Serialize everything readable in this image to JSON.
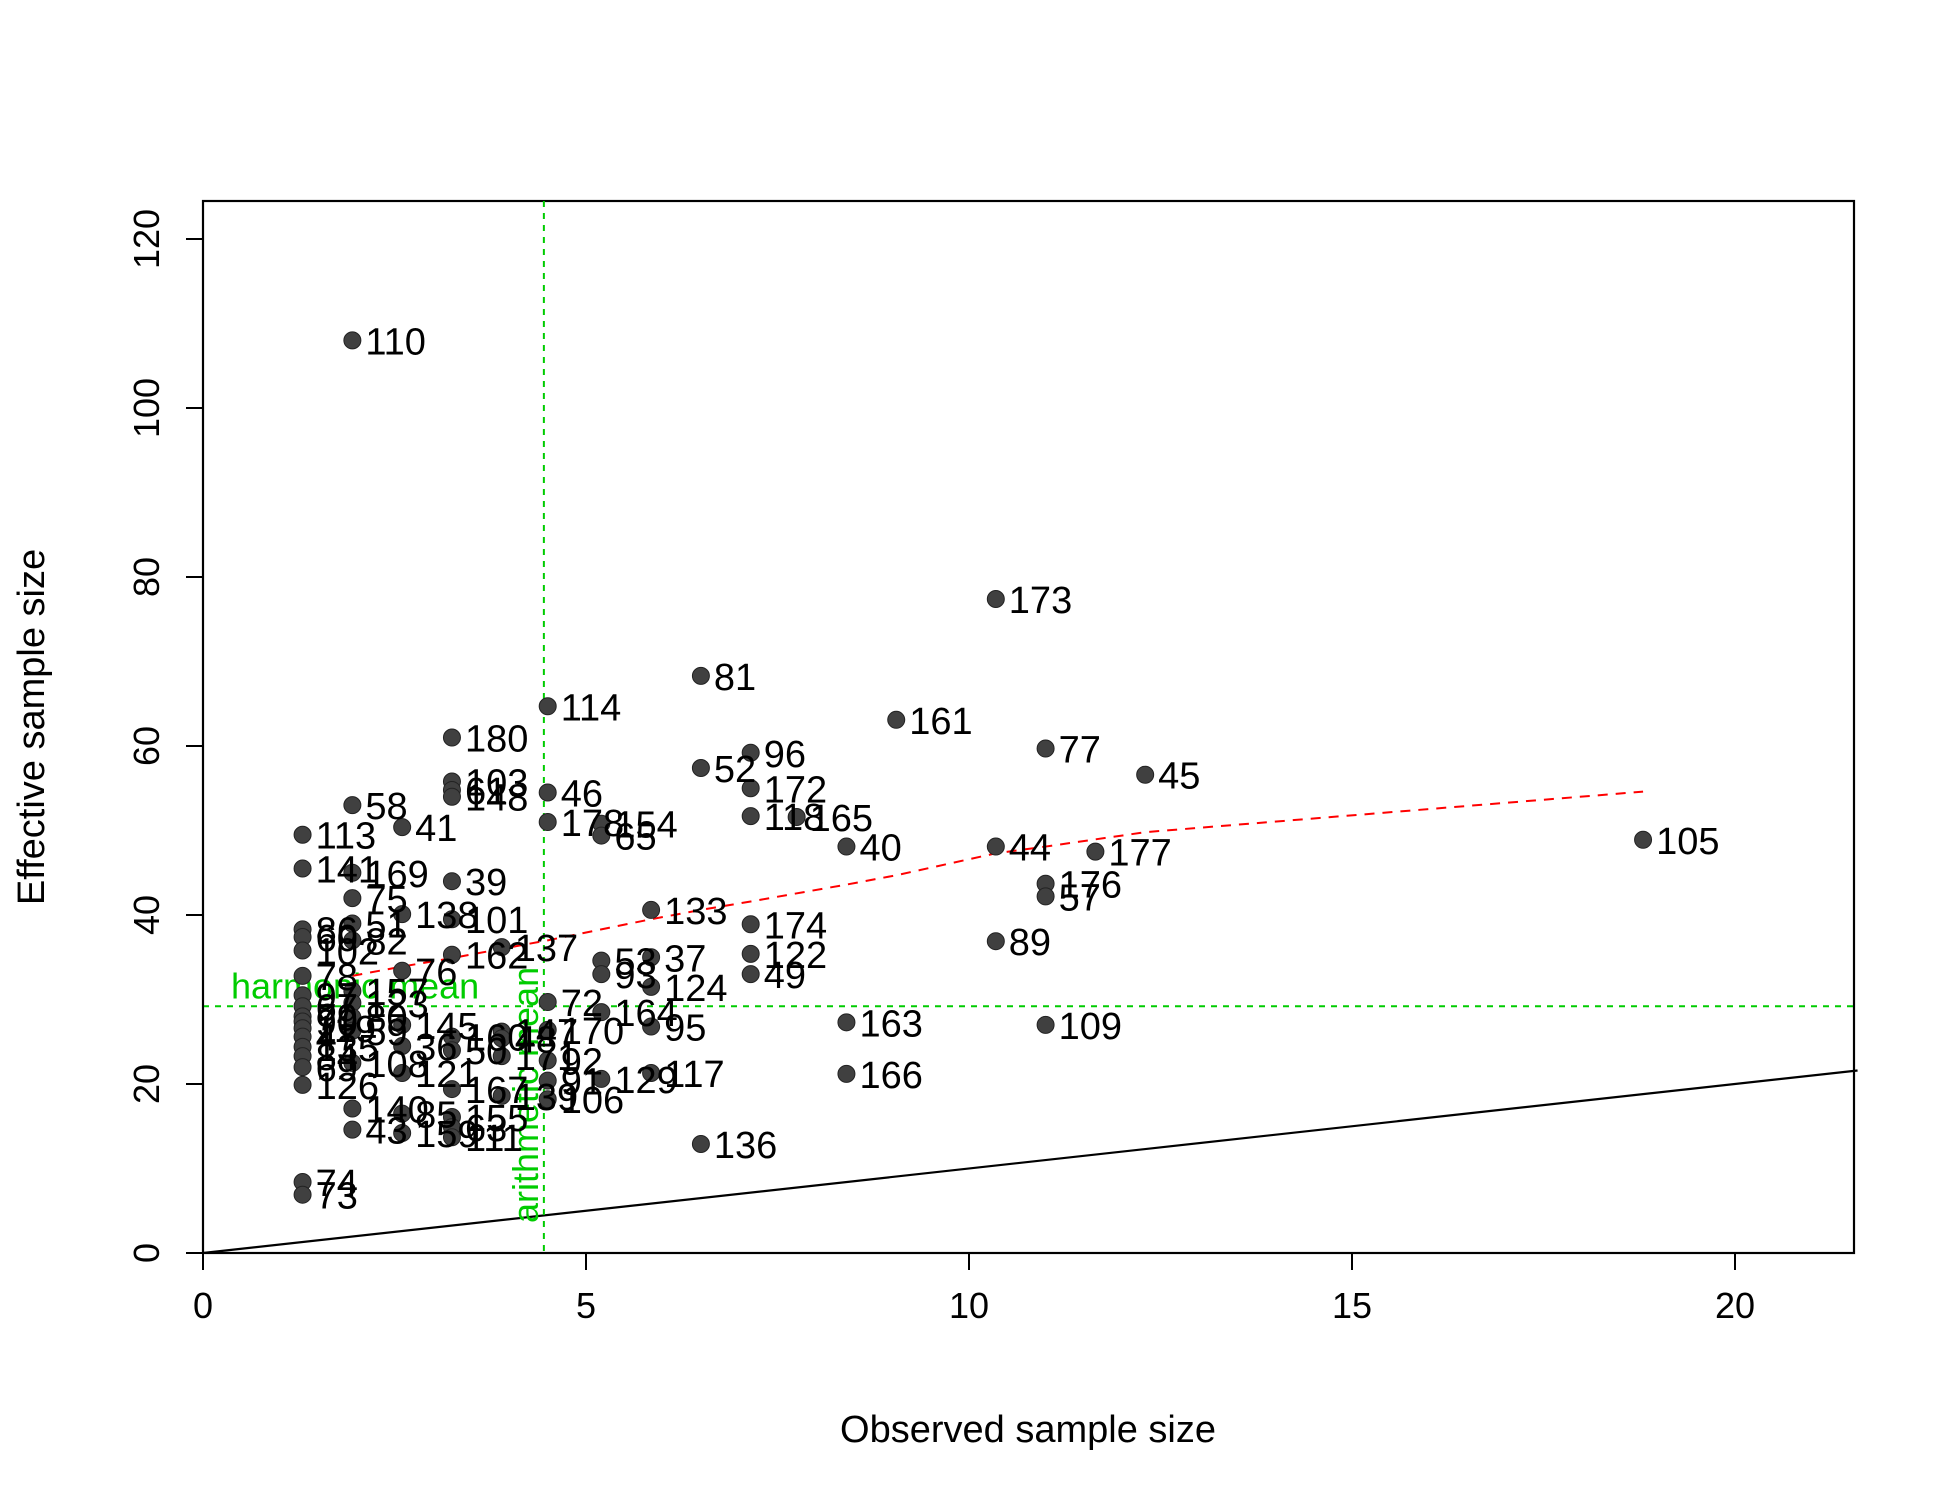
{
  "chart_data": {
    "type": "scatter",
    "title": "",
    "xlabel": "Observed sample size",
    "ylabel": "Effective sample size",
    "xlim": [
      0,
      21.6
    ],
    "ylim": [
      0,
      120
    ],
    "xticks": [
      0,
      5,
      10,
      15,
      20
    ],
    "yticks": [
      0,
      20,
      40,
      60,
      80,
      100,
      120
    ],
    "grid": false,
    "point_color": "#404040",
    "points": [
      {
        "x": 1.95,
        "y": 108,
        "label": "110"
      },
      {
        "x": 10.35,
        "y": 77.4,
        "label": "173"
      },
      {
        "x": 6.5,
        "y": 68.3,
        "label": "81"
      },
      {
        "x": 4.5,
        "y": 64.7,
        "label": "114"
      },
      {
        "x": 9.05,
        "y": 63.1,
        "label": "161"
      },
      {
        "x": 3.25,
        "y": 61.0,
        "label": "180"
      },
      {
        "x": 11.0,
        "y": 59.7,
        "label": "77"
      },
      {
        "x": 7.15,
        "y": 59.2,
        "label": "96"
      },
      {
        "x": 6.5,
        "y": 57.4,
        "label": "52"
      },
      {
        "x": 12.3,
        "y": 56.6,
        "label": "45"
      },
      {
        "x": 3.25,
        "y": 55.8,
        "label": "103"
      },
      {
        "x": 3.25,
        "y": 54.8,
        "label": "61"
      },
      {
        "x": 3.25,
        "y": 54.0,
        "label": "148"
      },
      {
        "x": 7.15,
        "y": 55.0,
        "label": "172"
      },
      {
        "x": 4.5,
        "y": 54.5,
        "label": "46"
      },
      {
        "x": 1.95,
        "y": 53.0,
        "label": "58"
      },
      {
        "x": 7.15,
        "y": 51.7,
        "label": "118"
      },
      {
        "x": 7.75,
        "y": 51.6,
        "label": "165"
      },
      {
        "x": 4.5,
        "y": 51.0,
        "label": "178"
      },
      {
        "x": 5.2,
        "y": 50.8,
        "label": "154"
      },
      {
        "x": 2.6,
        "y": 50.4,
        "label": "41"
      },
      {
        "x": 5.2,
        "y": 49.4,
        "label": "65"
      },
      {
        "x": 1.3,
        "y": 49.5,
        "label": "113"
      },
      {
        "x": 18.8,
        "y": 48.9,
        "label": "105"
      },
      {
        "x": 8.4,
        "y": 48.1,
        "label": "40"
      },
      {
        "x": 10.35,
        "y": 48.1,
        "label": "44"
      },
      {
        "x": 11.65,
        "y": 47.5,
        "label": "177"
      },
      {
        "x": 1.3,
        "y": 45.5,
        "label": "141"
      },
      {
        "x": 1.95,
        "y": 45.0,
        "label": "169"
      },
      {
        "x": 3.25,
        "y": 44.0,
        "label": "39"
      },
      {
        "x": 11.0,
        "y": 43.7,
        "label": "176"
      },
      {
        "x": 11.0,
        "y": 42.2,
        "label": "57"
      },
      {
        "x": 1.95,
        "y": 42.0,
        "label": "75"
      },
      {
        "x": 5.85,
        "y": 40.6,
        "label": "133"
      },
      {
        "x": 2.6,
        "y": 40.1,
        "label": "138"
      },
      {
        "x": 3.25,
        "y": 39.5,
        "label": "101"
      },
      {
        "x": 7.15,
        "y": 38.9,
        "label": "174"
      },
      {
        "x": 1.95,
        "y": 39.0,
        "label": "51"
      },
      {
        "x": 1.3,
        "y": 38.3,
        "label": "86"
      },
      {
        "x": 1.3,
        "y": 37.4,
        "label": "60"
      },
      {
        "x": 1.95,
        "y": 37.0,
        "label": "82"
      },
      {
        "x": 10.35,
        "y": 36.9,
        "label": "89"
      },
      {
        "x": 3.9,
        "y": 36.2,
        "label": "137"
      },
      {
        "x": 1.3,
        "y": 35.8,
        "label": "102"
      },
      {
        "x": 7.15,
        "y": 35.4,
        "label": "122"
      },
      {
        "x": 3.25,
        "y": 35.3,
        "label": "162"
      },
      {
        "x": 5.85,
        "y": 35.0,
        "label": "37"
      },
      {
        "x": 5.2,
        "y": 34.6,
        "label": "53"
      },
      {
        "x": 2.6,
        "y": 33.4,
        "label": "76"
      },
      {
        "x": 5.2,
        "y": 33.0,
        "label": "93"
      },
      {
        "x": 7.15,
        "y": 33.0,
        "label": "49"
      },
      {
        "x": 1.3,
        "y": 32.8,
        "label": "78"
      },
      {
        "x": 5.85,
        "y": 31.5,
        "label": "124"
      },
      {
        "x": 1.95,
        "y": 31.0,
        "label": "157"
      },
      {
        "x": 1.3,
        "y": 30.5,
        "label": "97"
      },
      {
        "x": 1.95,
        "y": 29.6,
        "label": "123"
      },
      {
        "x": 4.5,
        "y": 29.7,
        "label": "72"
      },
      {
        "x": 1.3,
        "y": 29.2,
        "label": "67"
      },
      {
        "x": 5.2,
        "y": 28.5,
        "label": "164"
      },
      {
        "x": 1.3,
        "y": 28.0,
        "label": "79"
      },
      {
        "x": 1.95,
        "y": 27.9,
        "label": "80"
      },
      {
        "x": 1.3,
        "y": 27.4,
        "label": "90"
      },
      {
        "x": 8.4,
        "y": 27.3,
        "label": "163"
      },
      {
        "x": 11.0,
        "y": 27.0,
        "label": "109"
      },
      {
        "x": 2.6,
        "y": 27.0,
        "label": "145"
      },
      {
        "x": 1.3,
        "y": 26.6,
        "label": "119"
      },
      {
        "x": 5.85,
        "y": 26.8,
        "label": "95"
      },
      {
        "x": 1.95,
        "y": 26.3,
        "label": "59"
      },
      {
        "x": 4.5,
        "y": 26.4,
        "label": "170"
      },
      {
        "x": 3.9,
        "y": 26.2,
        "label": "147"
      },
      {
        "x": 3.25,
        "y": 25.6,
        "label": "160"
      },
      {
        "x": 1.3,
        "y": 25.6,
        "label": "47"
      },
      {
        "x": 3.9,
        "y": 25.4,
        "label": "48"
      },
      {
        "x": 2.6,
        "y": 24.5,
        "label": "36"
      },
      {
        "x": 1.3,
        "y": 24.4,
        "label": "135"
      },
      {
        "x": 3.25,
        "y": 24.0,
        "label": "50"
      },
      {
        "x": 3.9,
        "y": 23.3,
        "label": "171"
      },
      {
        "x": 1.3,
        "y": 23.3,
        "label": "84"
      },
      {
        "x": 4.5,
        "y": 22.8,
        "label": "92"
      },
      {
        "x": 1.95,
        "y": 22.5,
        "label": "108"
      },
      {
        "x": 1.3,
        "y": 22.0,
        "label": "69"
      },
      {
        "x": 2.6,
        "y": 21.3,
        "label": "121"
      },
      {
        "x": 8.4,
        "y": 21.2,
        "label": "166"
      },
      {
        "x": 5.85,
        "y": 21.3,
        "label": "117"
      },
      {
        "x": 5.2,
        "y": 20.6,
        "label": "129"
      },
      {
        "x": 4.5,
        "y": 20.4,
        "label": "91"
      },
      {
        "x": 1.3,
        "y": 19.9,
        "label": "126"
      },
      {
        "x": 3.25,
        "y": 19.4,
        "label": "167"
      },
      {
        "x": 3.9,
        "y": 18.6,
        "label": "139"
      },
      {
        "x": 4.5,
        "y": 18.2,
        "label": "106"
      },
      {
        "x": 1.95,
        "y": 17.1,
        "label": "140"
      },
      {
        "x": 2.6,
        "y": 16.5,
        "label": "85"
      },
      {
        "x": 3.25,
        "y": 16.1,
        "label": "155"
      },
      {
        "x": 3.25,
        "y": 14.9,
        "label": "63"
      },
      {
        "x": 1.95,
        "y": 14.6,
        "label": "43"
      },
      {
        "x": 2.6,
        "y": 14.2,
        "label": "159"
      },
      {
        "x": 3.25,
        "y": 13.7,
        "label": "111"
      },
      {
        "x": 6.5,
        "y": 12.9,
        "label": "136"
      },
      {
        "x": 1.3,
        "y": 8.4,
        "label": "74"
      },
      {
        "x": 1.3,
        "y": 6.9,
        "label": "73"
      }
    ],
    "reference_lines": [
      {
        "kind": "identity",
        "style": "solid",
        "color": "#000000",
        "x": [
          0,
          21.6
        ],
        "y": [
          0,
          21.6
        ]
      },
      {
        "kind": "harmonic-mean",
        "style": "dashed",
        "color": "#00cc00",
        "y": 29.2,
        "label": "harmonic mean"
      },
      {
        "kind": "arithmetic-mean",
        "style": "dashed",
        "color": "#00cc00",
        "x": 4.45,
        "label": "arithmetic mean"
      }
    ],
    "trend": {
      "style": "dashed",
      "color": "#ff0000",
      "x": [
        1.95,
        2.6,
        3.25,
        3.9,
        4.5,
        5.2,
        5.85,
        6.5,
        7.15,
        8.4,
        9.05,
        10.35,
        11.0,
        12.3,
        18.8
      ],
      "y": [
        32.8,
        33.9,
        34.9,
        36.0,
        37.0,
        38.3,
        39.5,
        40.6,
        41.6,
        43.6,
        44.7,
        47.3,
        48.1,
        49.8,
        54.6
      ]
    }
  }
}
